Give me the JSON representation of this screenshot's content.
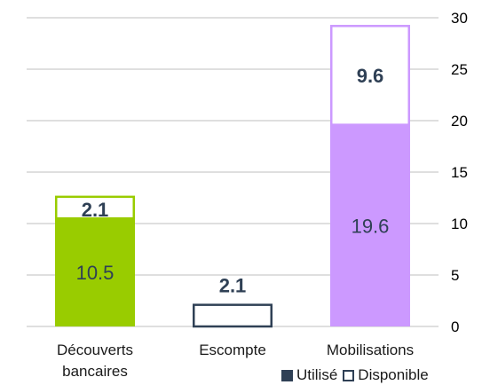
{
  "chart_data": {
    "type": "bar",
    "stacked": true,
    "categories": [
      [
        "Découverts",
        "bancaires"
      ],
      [
        "Escompte"
      ],
      [
        "Mobilisations"
      ]
    ],
    "series": [
      {
        "name": "Utilisé",
        "values": [
          10.5,
          0,
          19.6
        ],
        "colors": [
          "#99cc00",
          "#2f4055",
          "#cc99ff"
        ]
      },
      {
        "name": "Disponible",
        "values": [
          2.1,
          2.1,
          9.6
        ],
        "fill": "#ffffff",
        "borders": [
          "#99cc00",
          "#2f4055",
          "#cc99ff"
        ]
      }
    ],
    "data_labels": {
      "used": [
        "10.5",
        "",
        "19.6"
      ],
      "available": [
        "2.1",
        "2.1",
        "9.6"
      ]
    },
    "ylim": [
      0,
      30
    ],
    "yticks": [
      0,
      5,
      10,
      15,
      20,
      25,
      30
    ],
    "y_axis_side": "right",
    "grid": true,
    "legend_position": "bottom-right",
    "title": "",
    "xlabel": "",
    "ylabel": ""
  },
  "legend": {
    "used_label": "Utilisé",
    "available_label": "Disponible"
  }
}
